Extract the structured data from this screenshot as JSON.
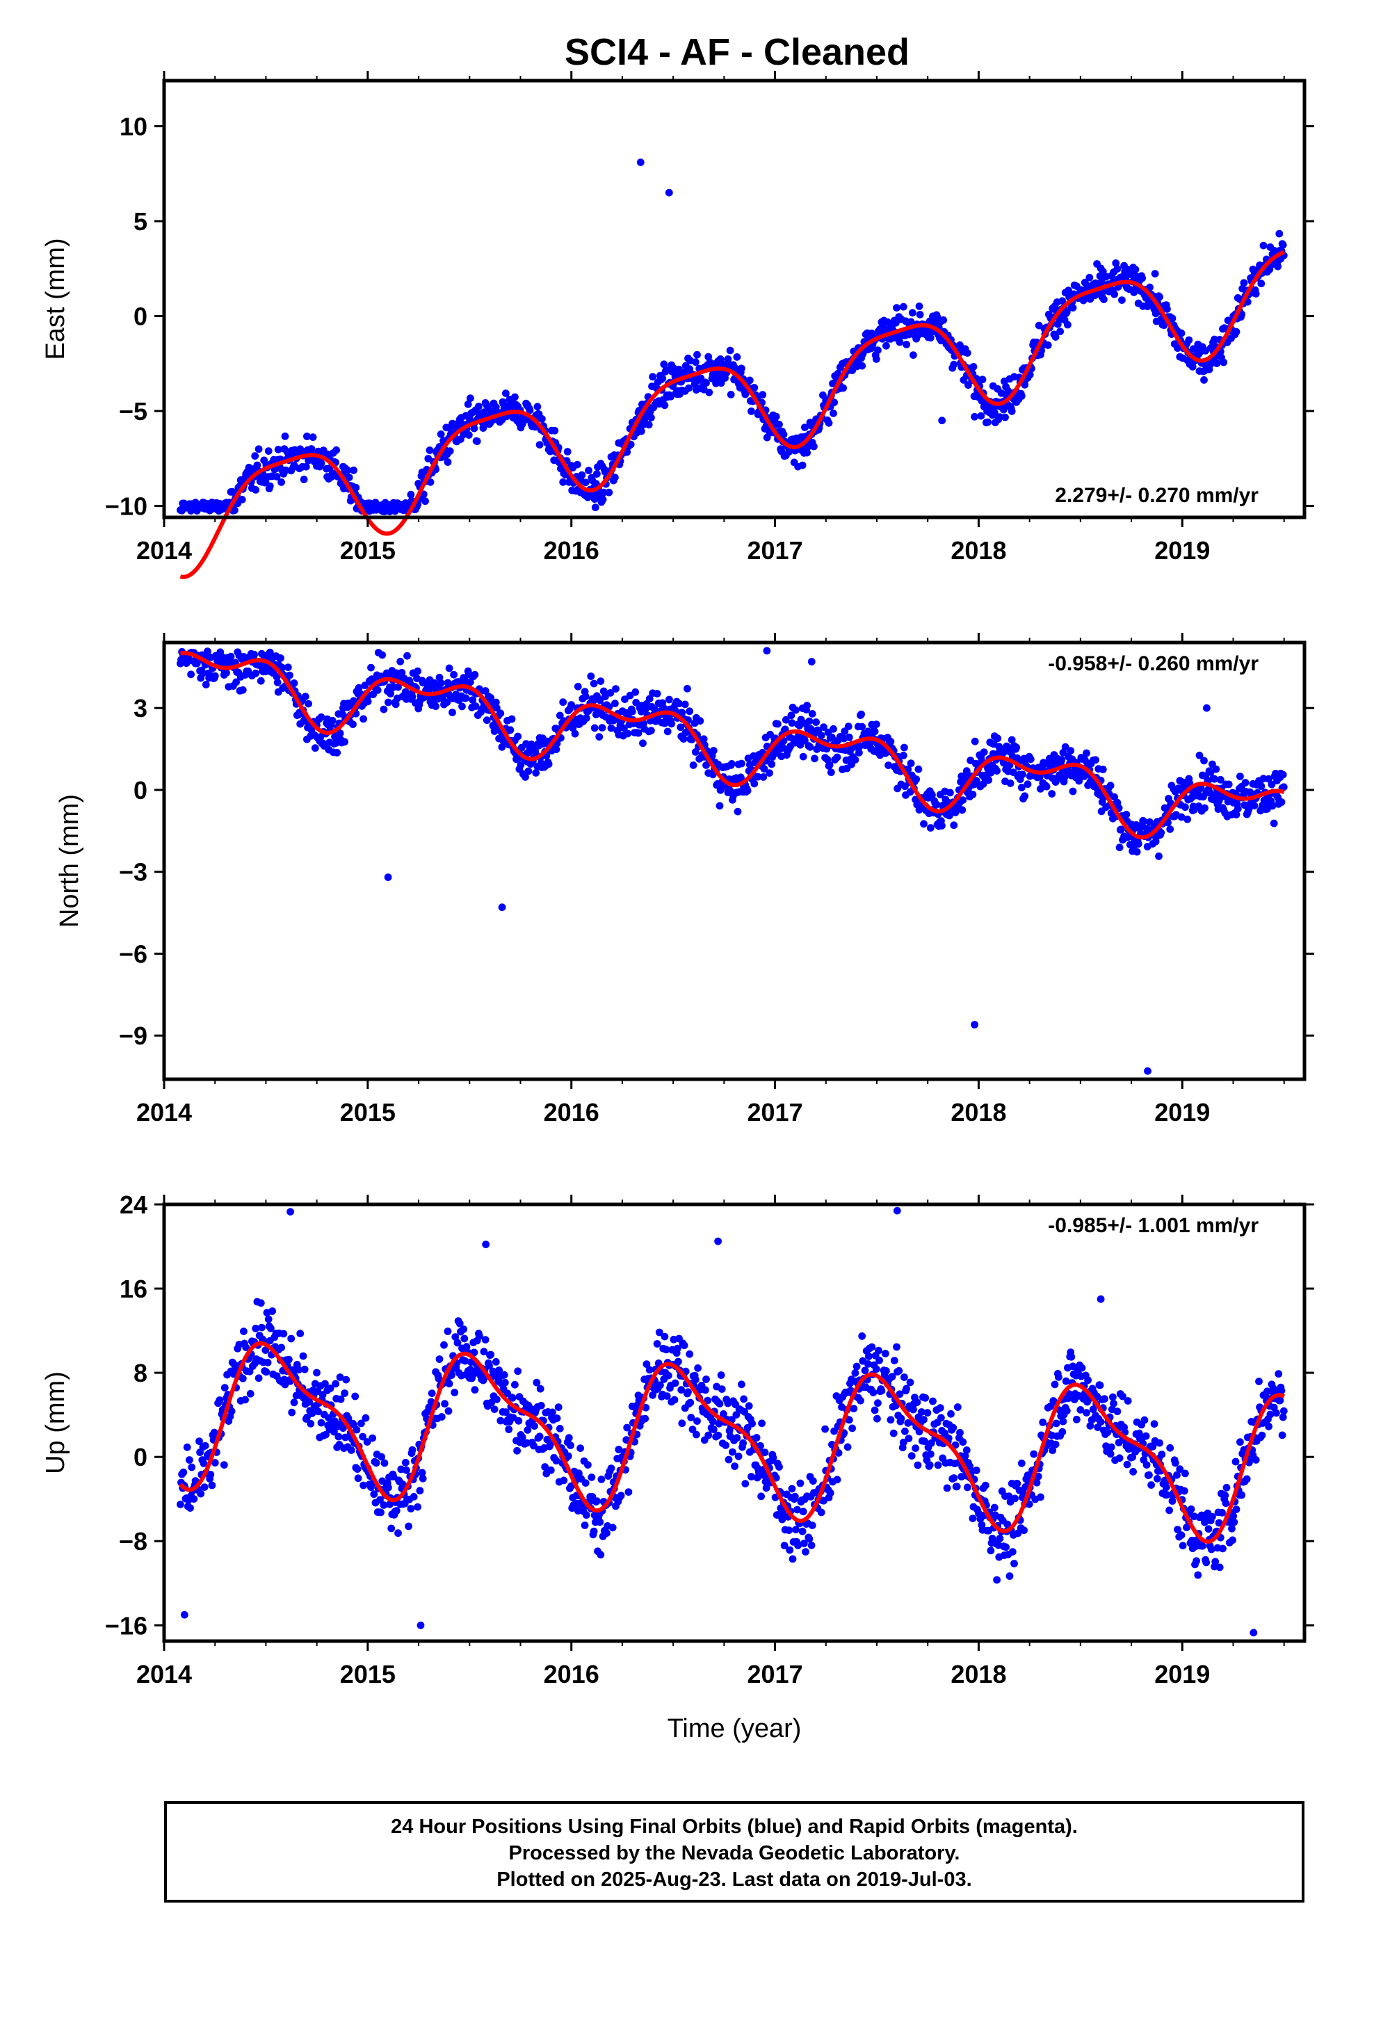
{
  "title": "SCI4  - AF - Cleaned",
  "footer": {
    "line1": "24 Hour Positions Using Final Orbits (blue) and Rapid Orbits (magenta).",
    "line2": "Processed by the Nevada Geodetic Laboratory.",
    "line3": "Plotted on 2025-Aug-23. Last data on 2019-Jul-03."
  },
  "colors": {
    "points": "#0000ff",
    "fit": "#ff0000",
    "axes": "#000000"
  },
  "chart_data": [
    {
      "type": "scatter",
      "ylabel": "East (mm)",
      "xlabel": "",
      "xlim": [
        2014.0,
        2019.6
      ],
      "ylim": [
        -10.6,
        12.4
      ],
      "xticks": [
        "2014",
        "2015",
        "2016",
        "2017",
        "2018",
        "2019"
      ],
      "yticks": [
        "10",
        "5",
        "0",
        "-5",
        "-10"
      ],
      "rate_text": "2.279+/- 0.270 mm/yr",
      "rate_position": "bottom-right",
      "fit": {
        "rate": 2.279,
        "offset": -4.7,
        "sin": -1.6,
        "cos": -1.9,
        "sin2": -0.6,
        "cos2": -0.2,
        "note_start": 2014.08,
        "end": 2019.5
      },
      "noise": 1.1,
      "series": [
        {
          "name": "Final Orbits",
          "kind": "points"
        },
        {
          "name": "Fit",
          "kind": "line"
        }
      ],
      "outliers": [
        [
          2017.82,
          -5.5
        ],
        [
          2017.98,
          -5.3
        ],
        [
          2016.48,
          6.5
        ],
        [
          2016.34,
          8.1
        ]
      ]
    },
    {
      "type": "scatter",
      "ylabel": "North (mm)",
      "xlabel": "",
      "xlim": [
        2014.0,
        2019.6
      ],
      "ylim": [
        -10.6,
        5.4
      ],
      "xticks": [
        "2014",
        "2015",
        "2016",
        "2017",
        "2018",
        "2019"
      ],
      "yticks": [
        "3",
        "0",
        "-3",
        "-6",
        "-9"
      ],
      "rate_text": "-0.958+/- 0.260 mm/yr",
      "rate_position": "top-right",
      "fit": {
        "rate": -0.958,
        "offset": 1.8,
        "sin": 0.9,
        "cos": -0.3,
        "sin2": 0.3,
        "cos2": 0.5,
        "note_start": 2014.08,
        "end": 2019.5
      },
      "noise": 0.95,
      "series": [
        {
          "name": "Final Orbits",
          "kind": "points"
        },
        {
          "name": "Fit",
          "kind": "line"
        }
      ],
      "outliers": [
        [
          2017.98,
          -8.6
        ],
        [
          2018.83,
          -10.3
        ],
        [
          2015.1,
          -3.2
        ],
        [
          2015.66,
          -4.3
        ],
        [
          2019.12,
          3.0
        ],
        [
          2016.96,
          5.1
        ],
        [
          2017.18,
          4.7
        ]
      ]
    },
    {
      "type": "scatter",
      "ylabel": "Up (mm)",
      "xlabel": "Time (year)",
      "xlim": [
        2014.0,
        2019.6
      ],
      "ylim": [
        -17.5,
        24.0
      ],
      "xticks": [
        "2014",
        "2015",
        "2016",
        "2017",
        "2018",
        "2019"
      ],
      "yticks": [
        "24",
        "16",
        "8",
        "0",
        "-8",
        "-16"
      ],
      "rate_text": "-0.985+/- 1.001 mm/yr",
      "rate_position": "top-right",
      "fit": {
        "rate": -0.985,
        "offset": 2.0,
        "sin": -2.5,
        "cos": -5.5,
        "sin2": -2.0,
        "cos2": 1.0,
        "note_start": 2014.08,
        "end": 2019.5
      },
      "noise": 4.2,
      "series": [
        {
          "name": "Final Orbits",
          "kind": "points"
        },
        {
          "name": "Fit",
          "kind": "line"
        }
      ],
      "outliers": [
        [
          2014.62,
          23.3
        ],
        [
          2017.6,
          23.4
        ],
        [
          2016.72,
          20.5
        ],
        [
          2015.58,
          20.2
        ],
        [
          2014.1,
          -15.0
        ],
        [
          2015.26,
          -16.0
        ],
        [
          2019.35,
          -16.7
        ],
        [
          2018.6,
          15.0
        ]
      ]
    }
  ]
}
